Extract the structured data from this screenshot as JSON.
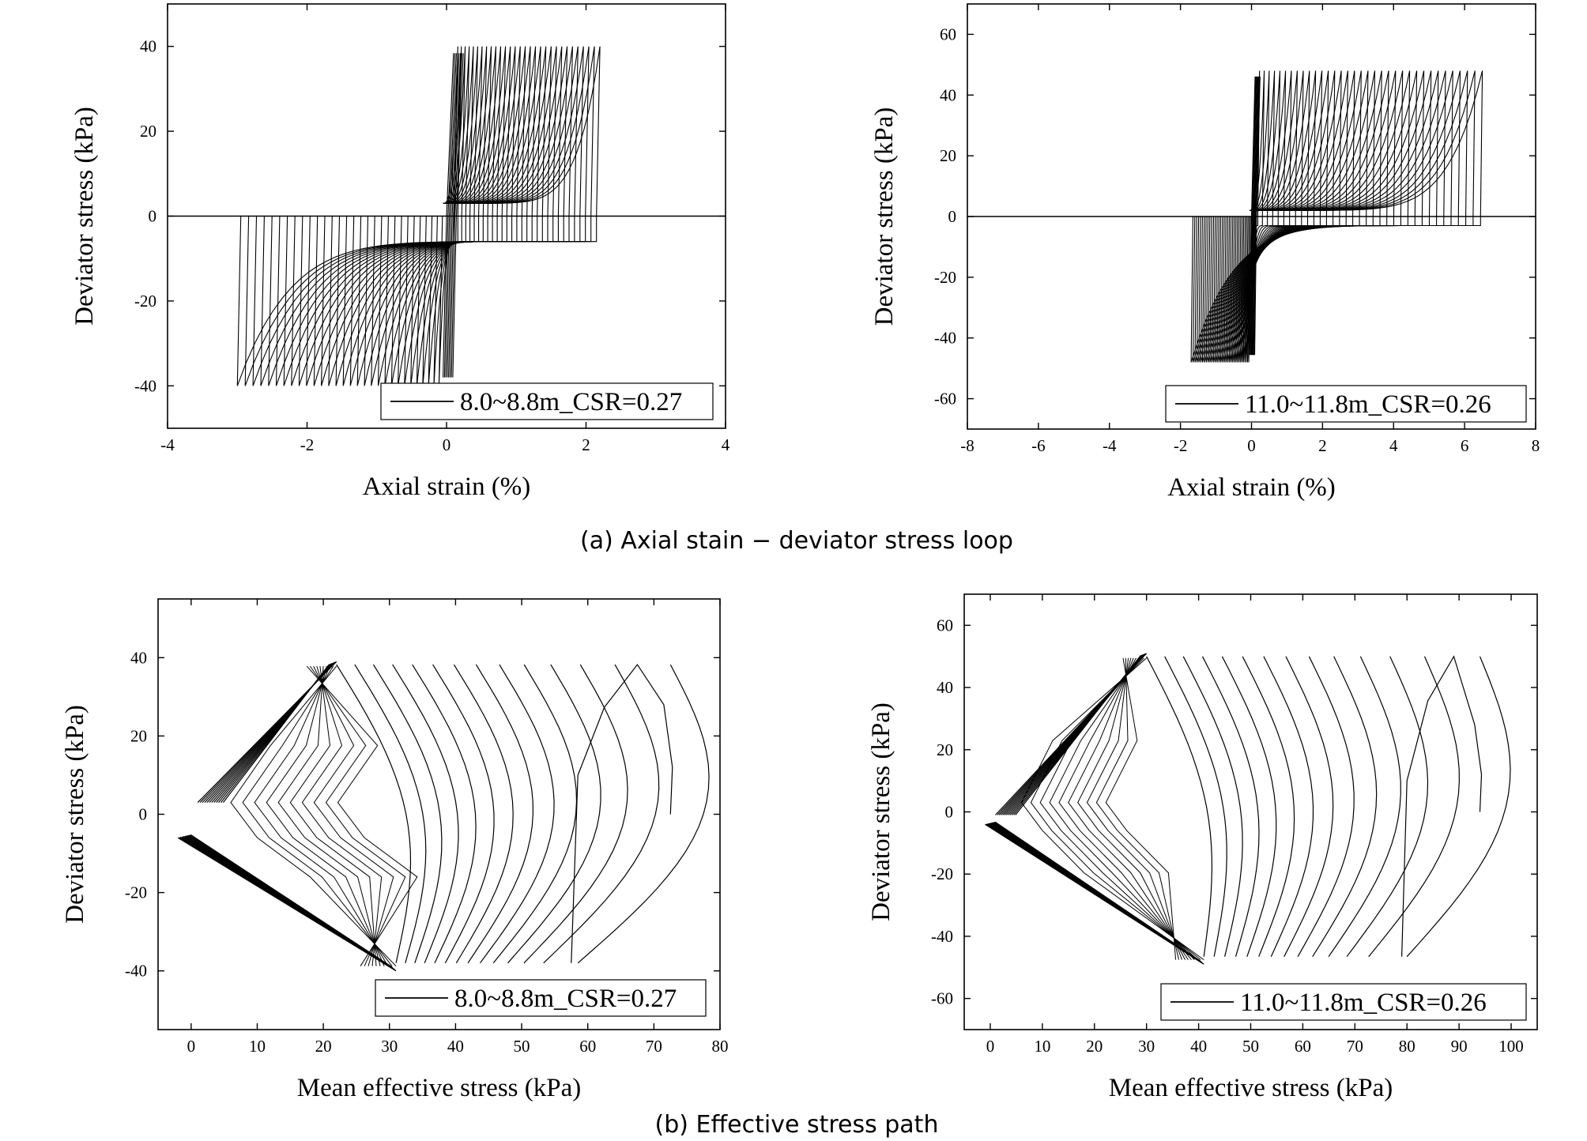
{
  "captions": {
    "a": "(a) Axial stain − deviator stress loop",
    "b": "(b) Effective stress path"
  },
  "chart_data": [
    {
      "type": "line",
      "xlabel": "Axial strain (%)",
      "ylabel": "Deviator stress (kPa)",
      "xlim": [
        -4,
        4
      ],
      "ylim": [
        -50,
        50
      ],
      "xticks": [
        -4,
        -2,
        0,
        2,
        4
      ],
      "yticks": [
        -40,
        -20,
        0,
        20,
        40
      ],
      "grid": false,
      "legend_position": "bottom-right",
      "zero_line": true,
      "series": [
        {
          "name": "8.0~8.8m_CSR=0.27",
          "color": "#000000",
          "loops": 30,
          "q_amplitude": 40,
          "plateau_q": [
            3,
            -6
          ],
          "final_strain_range": [
            -3.0,
            2.2
          ],
          "x": [
            0,
            0.1,
            0.12,
            0.15,
            0.6,
            1.2,
            2.0,
            2.2,
            2.15,
            1.0,
            0.1,
            -0.5,
            -1.5,
            -2.5,
            -2.8,
            -2.95,
            -2.95,
            -2.85
          ],
          "y": [
            0,
            10,
            30,
            39,
            35,
            25,
            10,
            40,
            0,
            -6,
            -6,
            -6,
            -5,
            -2,
            -10,
            -38,
            -40,
            -2
          ]
        }
      ]
    },
    {
      "type": "line",
      "xlabel": "Axial strain (%)",
      "ylabel": "Deviator stress (kPa)",
      "xlim": [
        -8,
        8
      ],
      "ylim": [
        -70,
        70
      ],
      "xticks": [
        -8,
        -6,
        -4,
        -2,
        0,
        2,
        4,
        6,
        8
      ],
      "yticks": [
        -60,
        -40,
        -20,
        0,
        20,
        40,
        60
      ],
      "grid": false,
      "legend_position": "bottom-right",
      "zero_line": true,
      "series": [
        {
          "name": "11.0~11.8m_CSR=0.26",
          "color": "#000000",
          "loops": 35,
          "q_amplitude": 48,
          "plateau_q": [
            2,
            -3
          ],
          "final_strain_range": [
            -1.7,
            6.5
          ],
          "x": [
            0,
            0.5,
            2.0,
            4.0,
            5.5,
            6.4,
            6.45,
            6.3,
            4.0,
            1.0,
            -0.5,
            -1.3,
            -1.6,
            -1.7,
            -2.0,
            -2.2
          ],
          "y": [
            0,
            46,
            48,
            49,
            50,
            48,
            40,
            0,
            -3,
            -4,
            -8,
            -30,
            -49,
            -45,
            -45,
            -55
          ]
        }
      ]
    },
    {
      "type": "line",
      "xlabel": "Mean effective stress (kPa)",
      "ylabel": "Deviator stress (kPa)",
      "xlim": [
        -5,
        80
      ],
      "ylim": [
        -55,
        55
      ],
      "xticks": [
        0,
        10,
        20,
        30,
        40,
        50,
        60,
        70,
        80
      ],
      "yticks": [
        -40,
        -20,
        0,
        20,
        40
      ],
      "grid": false,
      "legend_position": "bottom-right",
      "series": [
        {
          "name": "8.0~8.8m_CSR=0.27",
          "color": "#000000",
          "start_p": 72.5,
          "failure_line_compression": [
            [
              1,
              3
            ],
            [
              22,
              39
            ]
          ],
          "failure_line_extension": [
            [
              -2,
              -6
            ],
            [
              31,
              -40
            ]
          ],
          "x": [
            72.5,
            72.8,
            71,
            67,
            63,
            59,
            57,
            56,
            57,
            53,
            52,
            50,
            48,
            46,
            44,
            40,
            36,
            31,
            22,
            10,
            5,
            1,
            2,
            12,
            22,
            31,
            -2
          ],
          "y": [
            0,
            10,
            30,
            39,
            28,
            12,
            0,
            -20,
            -38,
            38,
            10,
            -37,
            38,
            -37,
            38,
            -37,
            38,
            -37,
            39,
            25,
            10,
            3,
            -1,
            -10,
            -25,
            -40,
            -6
          ]
        }
      ]
    },
    {
      "type": "line",
      "xlabel": "Mean effective stress (kPa)",
      "ylabel": "Deviator stress (kPa)",
      "xlim": [
        -5,
        105
      ],
      "ylim": [
        -70,
        70
      ],
      "xticks": [
        0,
        10,
        20,
        30,
        40,
        50,
        60,
        70,
        80,
        90,
        100
      ],
      "yticks": [
        -60,
        -40,
        -20,
        0,
        20,
        40,
        60
      ],
      "grid": false,
      "legend_position": "bottom-right",
      "series": [
        {
          "name": "11.0~11.8m_CSR=0.26",
          "color": "#000000",
          "start_p": 94,
          "failure_line_compression": [
            [
              1,
              -1
            ],
            [
              30,
              51
            ]
          ],
          "failure_line_extension": [
            [
              -1,
              -4
            ],
            [
              41,
              -49
            ]
          ],
          "x": [
            94,
            93.5,
            90,
            84,
            78,
            73,
            70,
            69.5,
            62,
            60,
            57,
            54,
            50,
            46,
            42,
            38,
            30,
            15,
            5,
            1,
            2,
            15,
            30,
            41,
            -1,
            35,
            53
          ],
          "y": [
            0,
            15,
            35,
            46,
            30,
            10,
            -20,
            -46,
            46,
            -45,
            46,
            -45,
            46,
            -45,
            46,
            -45,
            51,
            25,
            8,
            -1,
            -3,
            -15,
            -30,
            -49,
            -4,
            -40,
            -52
          ]
        }
      ]
    }
  ]
}
